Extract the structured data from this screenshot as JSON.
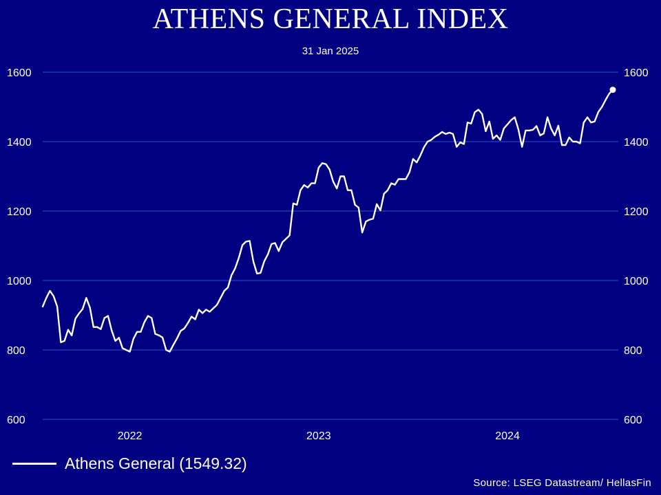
{
  "chart_data": {
    "type": "line",
    "title": "ATHENS GENERAL INDEX",
    "subtitle": "31 Jan 2025",
    "ylim": [
      600,
      1600
    ],
    "yticks": [
      1600,
      1400,
      1200,
      1000,
      800,
      600
    ],
    "xticks": [
      {
        "label": "2022",
        "index": 24
      },
      {
        "label": "2023",
        "index": 76
      },
      {
        "label": "2024",
        "index": 128
      }
    ],
    "grid": true,
    "line_color": "#ffffff",
    "background_color": "#000080",
    "gridline_color": "#2e4fd6",
    "series": [
      {
        "name": "Athens General (1549.32)",
        "last_value": 1549.32,
        "values": [
          925,
          950,
          970,
          955,
          925,
          822,
          826,
          858,
          842,
          890,
          905,
          918,
          950,
          922,
          866,
          866,
          860,
          892,
          898,
          856,
          826,
          835,
          805,
          800,
          795,
          832,
          852,
          852,
          880,
          898,
          892,
          846,
          842,
          836,
          800,
          795,
          815,
          833,
          855,
          862,
          878,
          896,
          888,
          916,
          906,
          916,
          910,
          920,
          930,
          950,
          970,
          980,
          1015,
          1035,
          1065,
          1102,
          1112,
          1114,
          1055,
          1020,
          1022,
          1055,
          1075,
          1105,
          1108,
          1085,
          1110,
          1120,
          1130,
          1222,
          1218,
          1260,
          1275,
          1268,
          1280,
          1280,
          1325,
          1338,
          1335,
          1320,
          1285,
          1265,
          1300,
          1300,
          1260,
          1260,
          1218,
          1210,
          1138,
          1170,
          1175,
          1178,
          1220,
          1202,
          1250,
          1260,
          1280,
          1276,
          1292,
          1292,
          1292,
          1312,
          1350,
          1340,
          1360,
          1384,
          1400,
          1405,
          1414,
          1420,
          1428,
          1422,
          1426,
          1422,
          1385,
          1398,
          1393,
          1455,
          1452,
          1485,
          1492,
          1480,
          1430,
          1458,
          1408,
          1418,
          1405,
          1438,
          1450,
          1462,
          1470,
          1435,
          1385,
          1432,
          1432,
          1434,
          1445,
          1418,
          1424,
          1470,
          1438,
          1418,
          1446,
          1390,
          1390,
          1412,
          1400,
          1400,
          1395,
          1455,
          1470,
          1455,
          1458,
          1485,
          1500,
          1520,
          1538,
          1549.32
        ]
      }
    ]
  },
  "legend": {
    "label": "Athens General (1549.32)"
  },
  "source": "Source: LSEG Datastream/ HellasFin"
}
